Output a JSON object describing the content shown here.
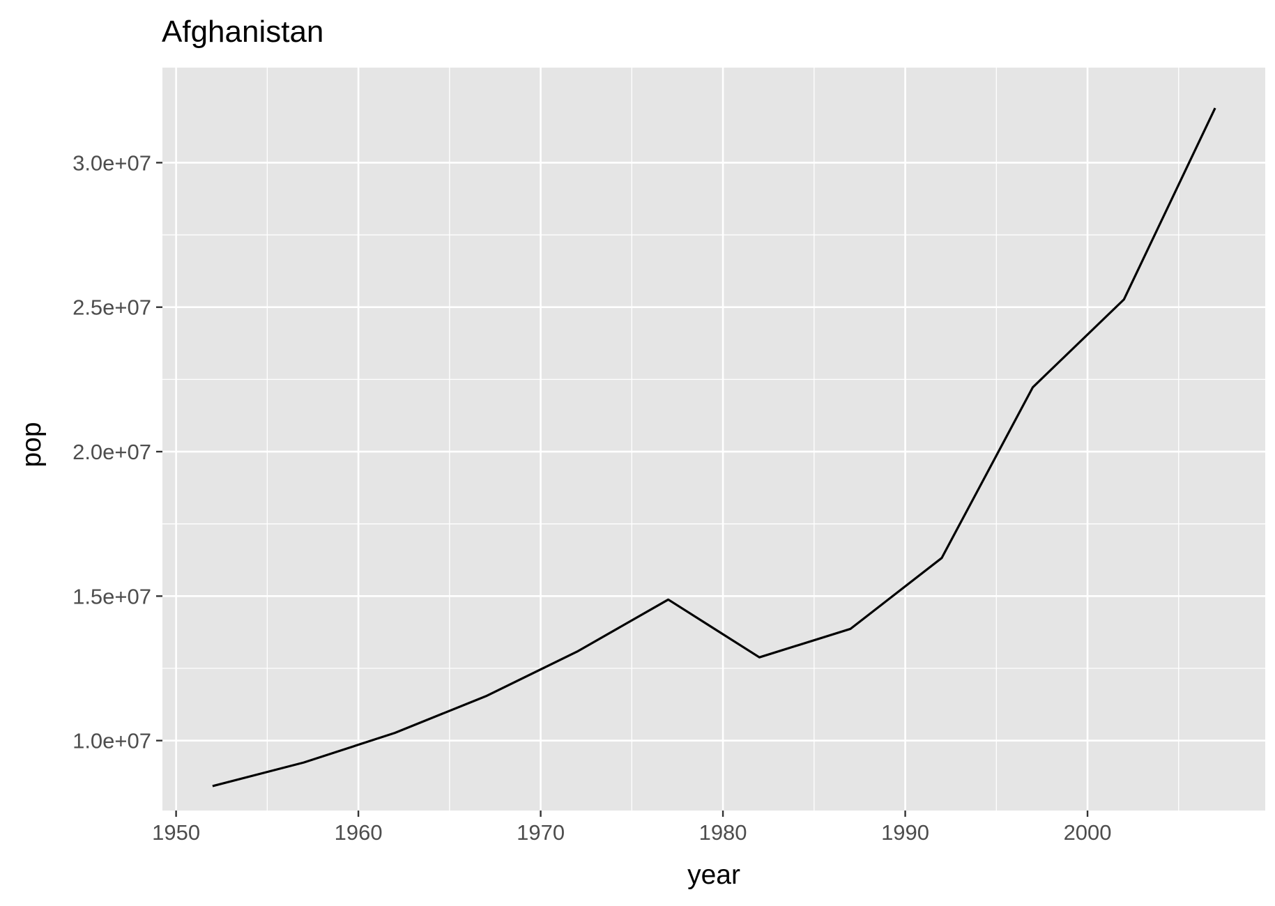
{
  "chart_data": {
    "type": "line",
    "title": "Afghanistan",
    "xlabel": "year",
    "ylabel": "pop",
    "xlim": [
      1949.25,
      2009.75
    ],
    "ylim": [
      7580000,
      33290000
    ],
    "x_ticks": [
      1950,
      1960,
      1970,
      1980,
      1990,
      2000
    ],
    "x_tick_labels": [
      "1950",
      "1960",
      "1970",
      "1980",
      "1990",
      "2000"
    ],
    "x_minor_ticks": [
      1955,
      1965,
      1975,
      1985,
      1995,
      2005
    ],
    "y_ticks": [
      10000000,
      15000000,
      20000000,
      25000000,
      30000000
    ],
    "y_tick_labels": [
      "1.0e+07",
      "1.5e+07",
      "2.0e+07",
      "2.5e+07",
      "3.0e+07"
    ],
    "y_minor_ticks": [
      12500000,
      17500000,
      22500000,
      27500000
    ],
    "grid": true,
    "colors": {
      "panel": "#e5e5e5",
      "grid": "#ffffff",
      "line": "#000000",
      "tick_text": "#4d4d4d",
      "tick_mark": "#333333",
      "title_text": "#000000"
    },
    "series": [
      {
        "x": [
          1952,
          1957,
          1962,
          1967,
          1972,
          1977,
          1982,
          1987,
          1992,
          1997,
          2002,
          2007
        ],
        "values": [
          8425333,
          9240934,
          10267083,
          11537966,
          13079460,
          14880372,
          12881816,
          13867957,
          16317921,
          22227415,
          25268405,
          31889923
        ]
      }
    ]
  }
}
